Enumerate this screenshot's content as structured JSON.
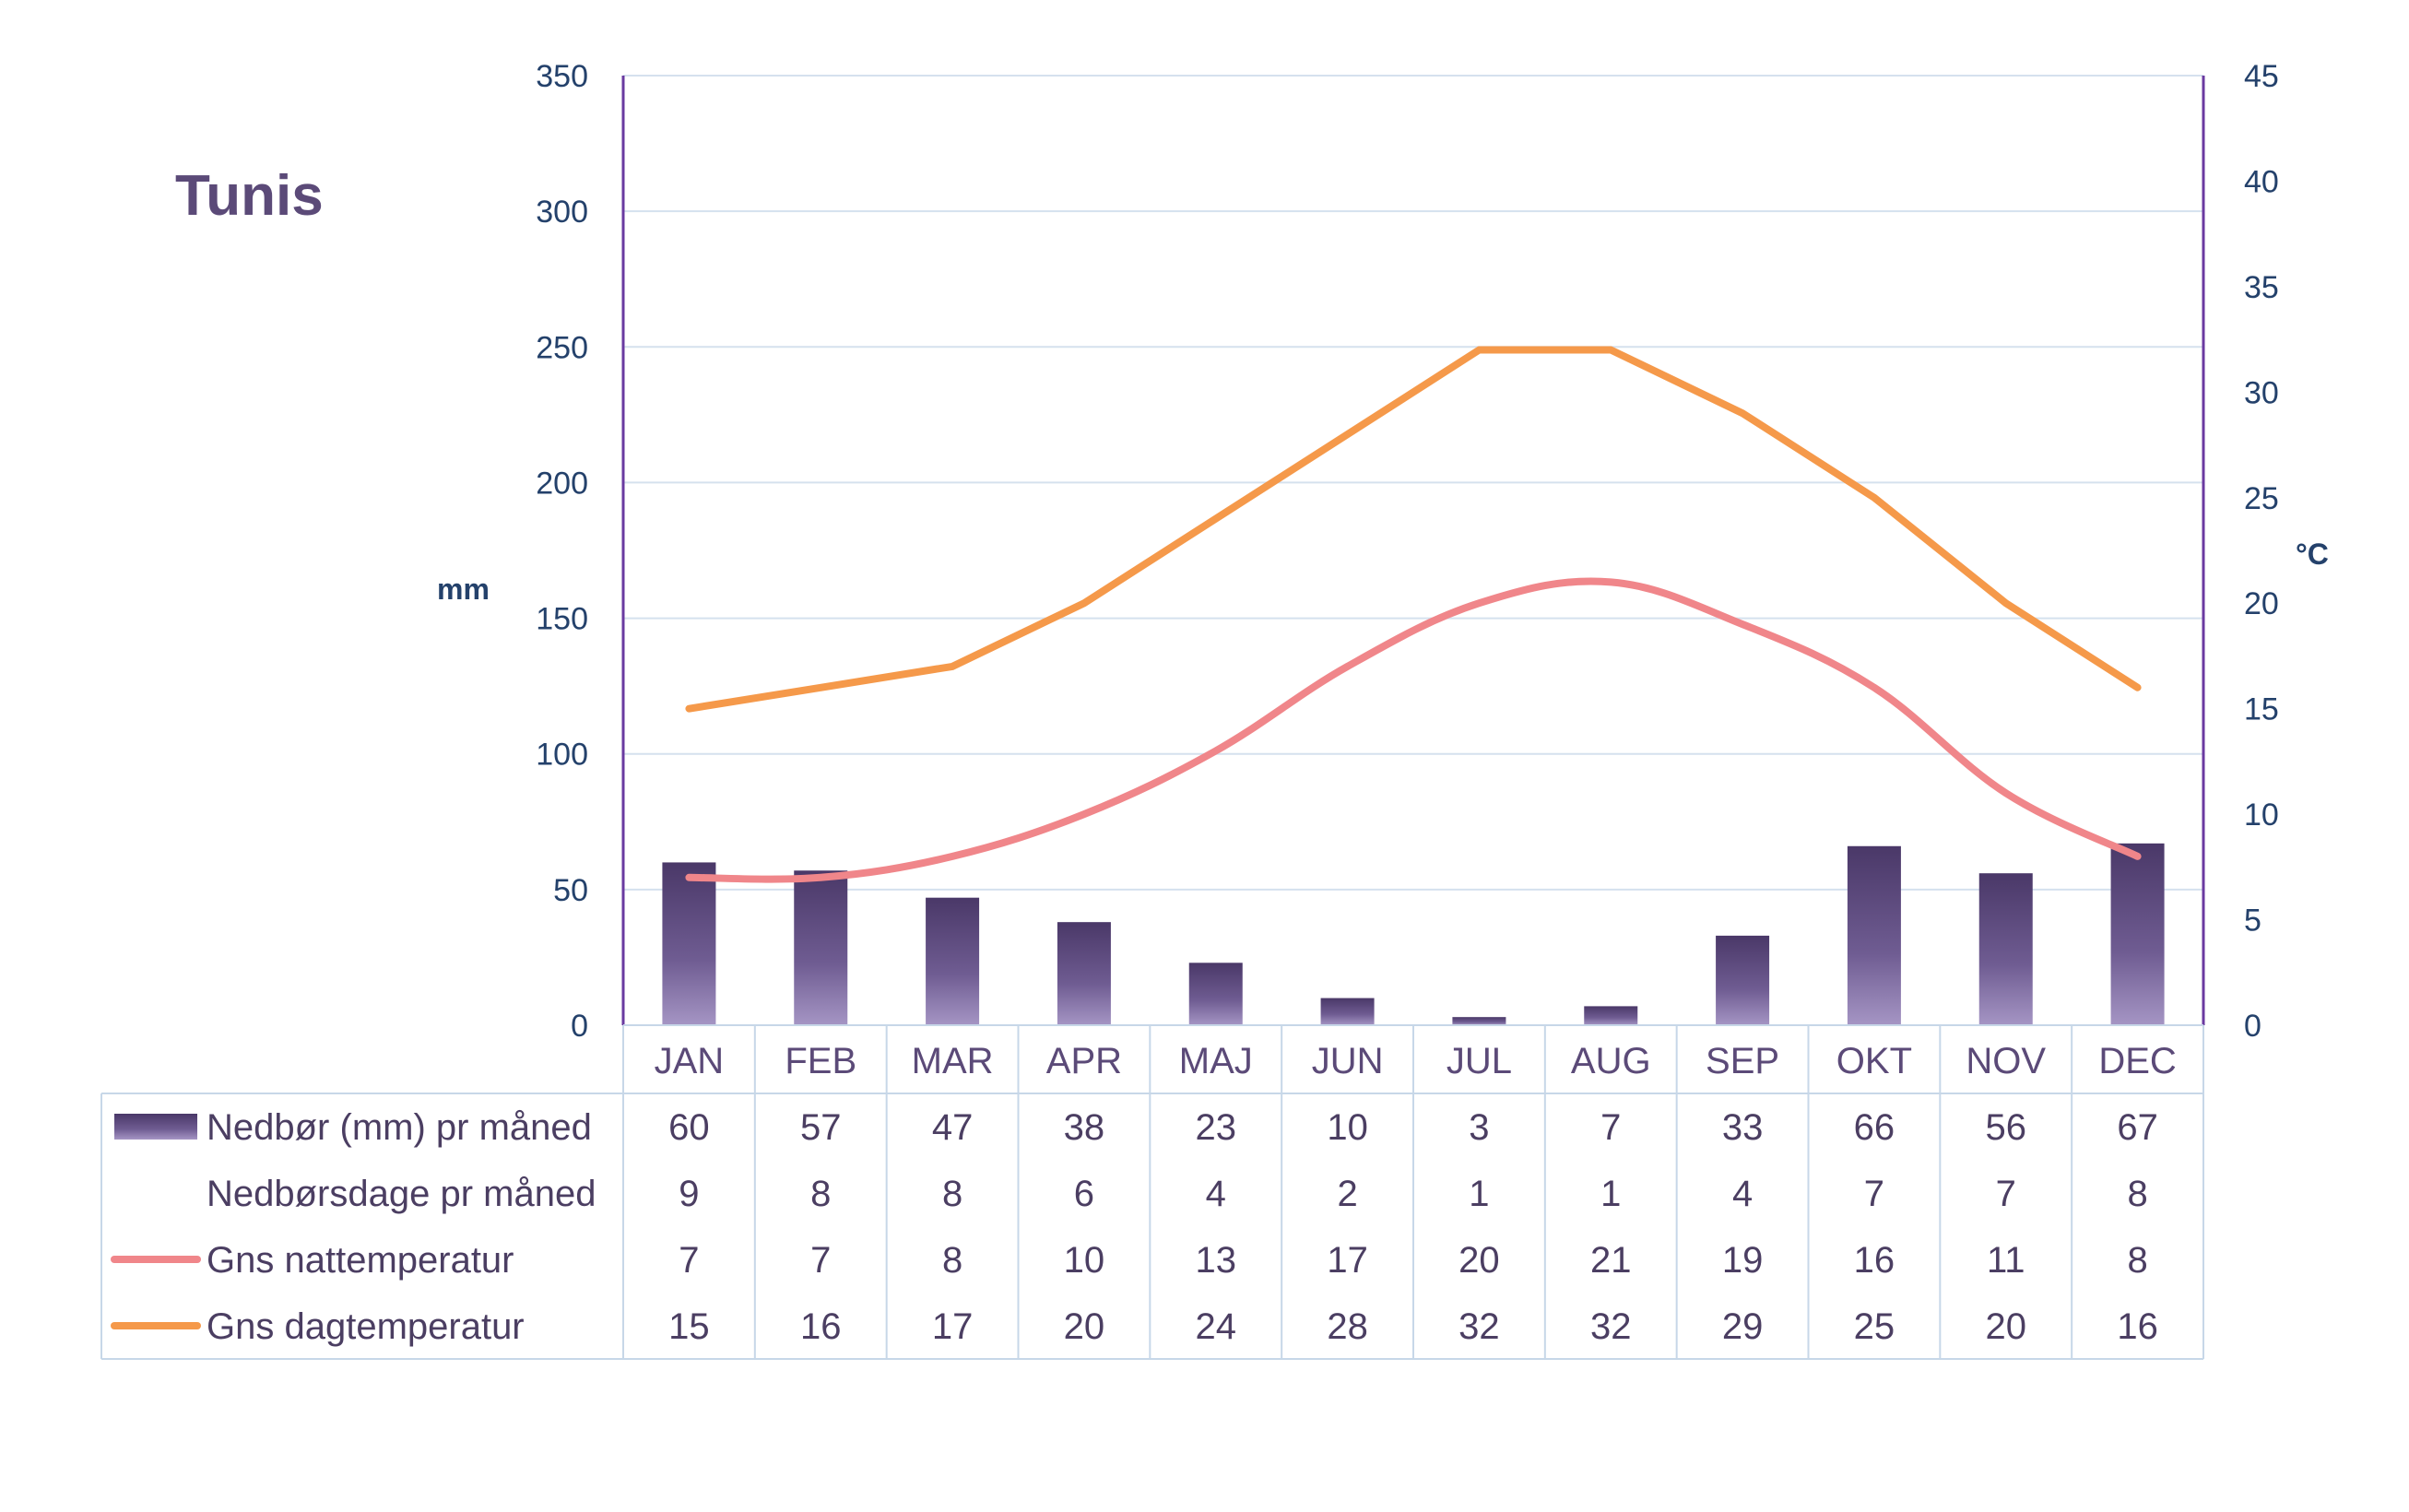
{
  "chart_data": {
    "type": "bar",
    "title": "Tunis",
    "categories": [
      "JAN",
      "FEB",
      "MAR",
      "APR",
      "MAJ",
      "JUN",
      "JUL",
      "AUG",
      "SEP",
      "OKT",
      "NOV",
      "DEC"
    ],
    "y_left": {
      "label": "mm",
      "min": 0,
      "max": 350,
      "ticks": [
        0,
        50,
        100,
        150,
        200,
        250,
        300,
        350
      ]
    },
    "y_right": {
      "label": "°C",
      "min": 0,
      "max": 45,
      "ticks": [
        0,
        5,
        10,
        15,
        20,
        25,
        30,
        35,
        40,
        45
      ]
    },
    "grid": true,
    "series": [
      {
        "name": "Nedbør (mm) pr måned",
        "kind": "bar",
        "axis": "left",
        "color": "#5d4a82",
        "values": [
          60,
          57,
          47,
          38,
          23,
          10,
          3,
          7,
          33,
          66,
          56,
          67
        ]
      },
      {
        "name": "Nedbørsdage pr måned",
        "kind": "table",
        "axis": "none",
        "values": [
          9,
          8,
          8,
          6,
          4,
          2,
          1,
          1,
          4,
          7,
          7,
          8
        ]
      },
      {
        "name": "Gns nattemperatur",
        "kind": "line",
        "axis": "right",
        "color": "#f0868a",
        "values": [
          7,
          7,
          8,
          10,
          13,
          17,
          20,
          21,
          19,
          16,
          11,
          8
        ]
      },
      {
        "name": "Gns dagtemperatur",
        "kind": "line",
        "axis": "right",
        "color": "#f5994a",
        "values": [
          15,
          16,
          17,
          20,
          24,
          28,
          32,
          32,
          29,
          25,
          20,
          16
        ]
      }
    ]
  }
}
